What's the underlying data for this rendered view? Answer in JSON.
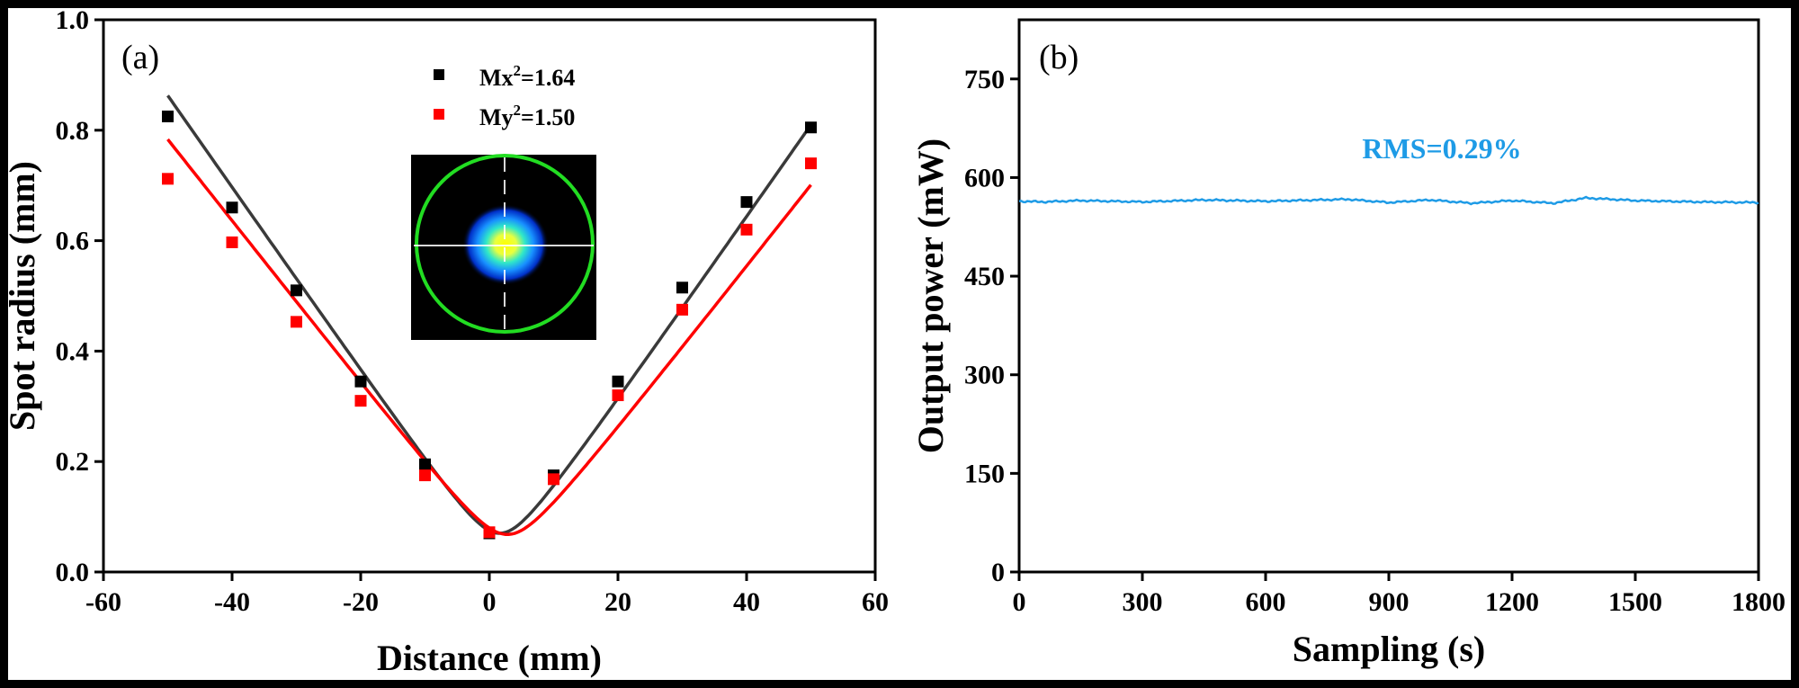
{
  "chart_data": [
    {
      "panel": "(a)",
      "type": "scatter",
      "xlabel": "Distance (mm)",
      "ylabel": "Spot radius (mm)",
      "xlim": [
        -60,
        60
      ],
      "ylim": [
        0.0,
        1.0
      ],
      "xticks": [
        -60,
        -40,
        -20,
        0,
        20,
        40,
        60
      ],
      "xtick_labels": [
        "-60",
        "-40",
        "-20",
        "0",
        "20",
        "40",
        "60"
      ],
      "yticks": [
        0.0,
        0.2,
        0.4,
        0.6,
        0.8,
        1.0
      ],
      "ytick_labels": [
        "0.0",
        "0.2",
        "0.4",
        "0.6",
        "0.8",
        "1.0"
      ],
      "legend_position": "top-center",
      "series": [
        {
          "label_base": "Mx",
          "label_sup": "2",
          "label_tail": "=1.64",
          "color": "#000000",
          "marker": "square",
          "x": [
            -50,
            -40,
            -30,
            -20,
            -10,
            0,
            10,
            20,
            30,
            40,
            50
          ],
          "y": [
            0.825,
            0.66,
            0.51,
            0.345,
            0.195,
            0.07,
            0.175,
            0.345,
            0.515,
            0.67,
            0.805
          ],
          "fit": {
            "w0": 0.07,
            "z0": 1.6,
            "zR": 4.2,
            "color": "#3a3a3a"
          }
        },
        {
          "label_base": "My",
          "label_sup": "2",
          "label_tail": "=1.50",
          "color": "#ff0000",
          "marker": "square",
          "x": [
            -50,
            -40,
            -30,
            -20,
            -10,
            0,
            10,
            20,
            30,
            40,
            50
          ],
          "y": [
            0.712,
            0.597,
            0.453,
            0.31,
            0.175,
            0.072,
            0.168,
            0.32,
            0.475,
            0.62,
            0.74
          ],
          "fit": {
            "w0": 0.068,
            "z0": 2.8,
            "zR": 4.6,
            "color": "#ff0000"
          }
        }
      ],
      "inset": {
        "description_icon": "beam-profile-image"
      }
    },
    {
      "panel": "(b)",
      "type": "line",
      "xlabel": "Sampling (s)",
      "ylabel": "Output power (mW)",
      "xlim": [
        0,
        1800
      ],
      "ylim": [
        0,
        840
      ],
      "xticks": [
        0,
        300,
        600,
        900,
        1200,
        1500,
        1800
      ],
      "xtick_labels": [
        "0",
        "300",
        "600",
        "900",
        "1200",
        "1500",
        "1800"
      ],
      "yticks": [
        0,
        150,
        300,
        450,
        600,
        750
      ],
      "ytick_labels": [
        "0",
        "150",
        "300",
        "450",
        "600",
        "750"
      ],
      "annotation": "RMS=0.29%",
      "series": [
        {
          "color": "#1e9be6",
          "mean": 564,
          "keypoints": [
            [
              0,
              564
            ],
            [
              60,
              563
            ],
            [
              150,
              565
            ],
            [
              300,
              563
            ],
            [
              450,
              566
            ],
            [
              600,
              564
            ],
            [
              800,
              567
            ],
            [
              900,
              562
            ],
            [
              1000,
              566
            ],
            [
              1100,
              561
            ],
            [
              1200,
              565
            ],
            [
              1300,
              561
            ],
            [
              1380,
              569
            ],
            [
              1500,
              565
            ],
            [
              1650,
              563
            ],
            [
              1800,
              562
            ]
          ]
        }
      ]
    }
  ]
}
